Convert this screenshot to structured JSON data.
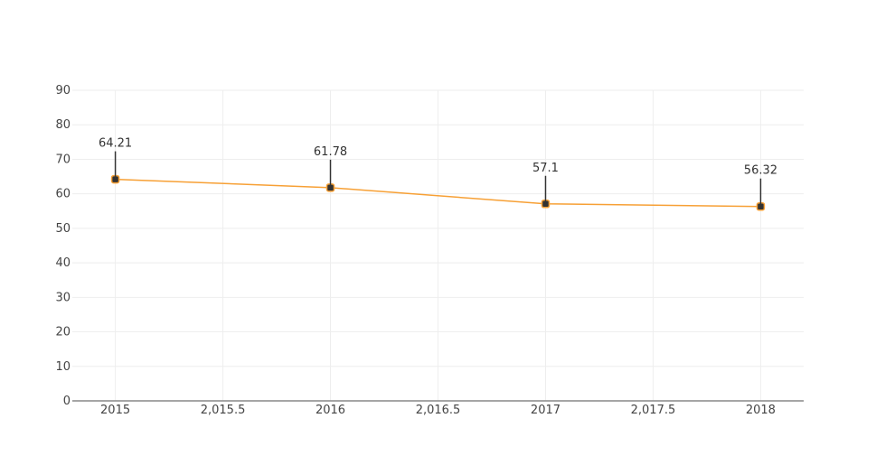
{
  "chart_data": {
    "type": "line",
    "title": "",
    "xlabel": "",
    "ylabel": "",
    "x": [
      2015,
      2016,
      2017,
      2018
    ],
    "series": [
      {
        "values": [
          64.21,
          61.78,
          57.1,
          56.32
        ],
        "labels": [
          "64.21",
          "61.78",
          "57.1",
          "56.32"
        ]
      }
    ],
    "xlim": [
      2014.8,
      2018.2
    ],
    "ylim": [
      0,
      90
    ],
    "x_ticks": [
      2015,
      2015.5,
      2016,
      2016.5,
      2017,
      2017.5,
      2018
    ],
    "x_tick_labels": [
      "2015",
      "2,015.5",
      "2016",
      "2,016.5",
      "2017",
      "2,017.5",
      "2018"
    ],
    "y_ticks": [
      0,
      10,
      20,
      30,
      40,
      50,
      60,
      70,
      80,
      90
    ],
    "y_tick_labels": [
      "0",
      "10",
      "20",
      "30",
      "40",
      "50",
      "60",
      "70",
      "80",
      "90"
    ],
    "grid": true,
    "legend": "none",
    "colors": {
      "line": "#f7a035",
      "marker_fill": "#333333",
      "marker_edge": "#f7a035",
      "grid": "#eeeeee",
      "axis": "#888888",
      "stem": "#333333"
    }
  }
}
